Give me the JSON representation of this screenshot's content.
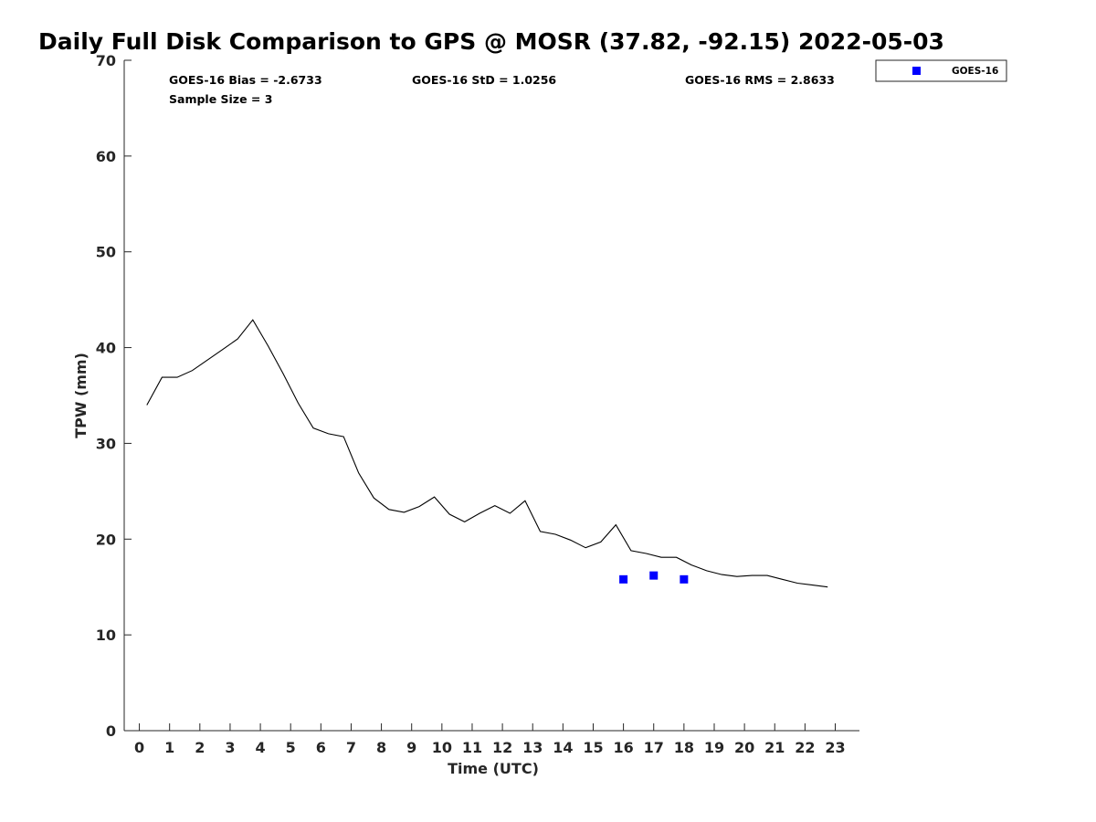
{
  "chart_data": {
    "type": "line",
    "title": "Daily Full Disk Comparison to GPS @ MOSR (37.82, -92.15) 2022-05-03",
    "xlabel": "Time (UTC)",
    "ylabel": "TPW (mm)",
    "xlim": [
      -0.5,
      23.8
    ],
    "ylim": [
      0,
      70
    ],
    "xticks": [
      "0",
      "1",
      "2",
      "3",
      "4",
      "5",
      "6",
      "7",
      "8",
      "9",
      "10",
      "11",
      "12",
      "13",
      "14",
      "15",
      "16",
      "17",
      "18",
      "19",
      "20",
      "21",
      "22",
      "23"
    ],
    "yticks": [
      "0",
      "10",
      "20",
      "30",
      "40",
      "50",
      "60",
      "70"
    ],
    "grid": false,
    "stats": {
      "bias": "GOES-16 Bias = -2.6733",
      "std": "GOES-16 StD = 1.0256",
      "rms": "GOES-16 RMS = 2.8633",
      "sample_size": "Sample Size = 3"
    },
    "legend": {
      "placement": "outside-top-right",
      "entries": [
        "GOES-16"
      ]
    },
    "series": [
      {
        "kind": "line",
        "color": "#000000",
        "x": [
          0.25,
          0.75,
          1.25,
          1.75,
          2.25,
          2.75,
          3.25,
          3.75,
          4.25,
          4.75,
          5.25,
          5.75,
          6.25,
          6.75,
          7.25,
          7.75,
          8.25,
          8.75,
          9.25,
          9.75,
          10.25,
          10.75,
          11.25,
          11.75,
          12.25,
          12.75,
          13.25,
          13.75,
          14.25,
          14.75,
          15.25,
          15.75,
          16.25,
          16.75,
          17.25,
          17.75,
          18.25,
          18.75,
          19.25,
          19.75,
          20.25,
          20.75,
          21.25,
          21.75,
          22.25,
          22.75
        ],
        "y": [
          34.0,
          36.9,
          36.9,
          37.6,
          38.7,
          39.8,
          40.9,
          42.9,
          40.2,
          37.3,
          34.2,
          31.6,
          31.0,
          30.7,
          26.9,
          24.3,
          23.1,
          22.8,
          23.4,
          24.4,
          22.6,
          21.8,
          22.7,
          23.5,
          22.7,
          24.0,
          20.8,
          20.5,
          19.9,
          19.1,
          19.7,
          21.5,
          18.8,
          18.5,
          18.1,
          18.1,
          17.3,
          16.7,
          16.3,
          16.1,
          16.2,
          16.2,
          15.8,
          15.4,
          15.2,
          15.0
        ]
      },
      {
        "name": "GOES-16",
        "kind": "scatter",
        "marker": "square",
        "color": "#0000ff",
        "x": [
          16,
          17,
          18
        ],
        "y": [
          15.8,
          16.2,
          15.8
        ]
      }
    ]
  }
}
